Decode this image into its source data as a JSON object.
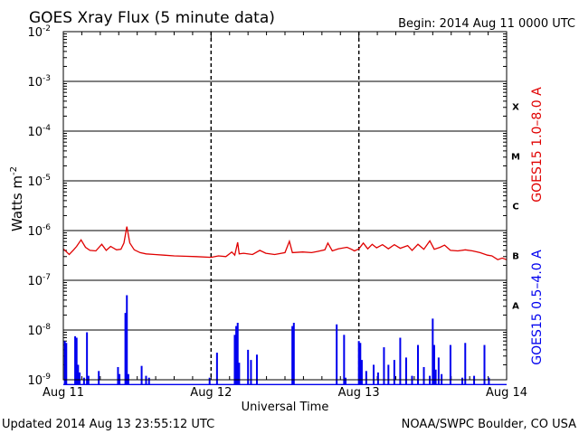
{
  "chart_data": {
    "type": "line",
    "title": "GOES Xray Flux (5 minute data)",
    "begin_label": "Begin:  2014 Aug 11 0000 UTC",
    "xlabel": "Universal Time",
    "ylabel": "Watts m",
    "ylabel_sup": "-2",
    "x_ticks": [
      "Aug 11",
      "Aug 12",
      "Aug 13",
      "Aug 14"
    ],
    "xlim_days": [
      0,
      3
    ],
    "ylim_log10": [
      -9,
      -2
    ],
    "y_ticks": [
      {
        "exp": -2,
        "base": "10",
        "sup": "-2"
      },
      {
        "exp": -3,
        "base": "10",
        "sup": "-3"
      },
      {
        "exp": -4,
        "base": "10",
        "sup": "-4"
      },
      {
        "exp": -5,
        "base": "10",
        "sup": "-5"
      },
      {
        "exp": -6,
        "base": "10",
        "sup": "-6"
      },
      {
        "exp": -7,
        "base": "10",
        "sup": "-7"
      },
      {
        "exp": -8,
        "base": "10",
        "sup": "-8"
      },
      {
        "exp": -9,
        "base": "10",
        "sup": "-9"
      }
    ],
    "flare_classes": [
      {
        "label": "X",
        "exp": -3.5
      },
      {
        "label": "M",
        "exp": -4.5
      },
      {
        "label": "C",
        "exp": -5.5
      },
      {
        "label": "B",
        "exp": -6.5
      },
      {
        "label": "A",
        "exp": -7.5
      }
    ],
    "grid": "horizontal decades, dashed day separators",
    "series": [
      {
        "name": "GOES15 1.0-8.0 A",
        "color": "#e00000",
        "points": [
          [
            0.0,
            4.3e-07
          ],
          [
            0.04,
            3.3e-07
          ],
          [
            0.07,
            4.1e-07
          ],
          [
            0.09,
            4.8e-07
          ],
          [
            0.12,
            6.5e-07
          ],
          [
            0.15,
            4.6e-07
          ],
          [
            0.18,
            4e-07
          ],
          [
            0.22,
            3.9e-07
          ],
          [
            0.26,
            5.3e-07
          ],
          [
            0.29,
            4e-07
          ],
          [
            0.32,
            4.8e-07
          ],
          [
            0.36,
            4.1e-07
          ],
          [
            0.39,
            4.2e-07
          ],
          [
            0.41,
            5.6e-07
          ],
          [
            0.43,
            1.2e-06
          ],
          [
            0.45,
            5.6e-07
          ],
          [
            0.48,
            4.1e-07
          ],
          [
            0.52,
            3.6e-07
          ],
          [
            0.56,
            3.4e-07
          ],
          [
            0.62,
            3.3e-07
          ],
          [
            0.68,
            3.2e-07
          ],
          [
            0.75,
            3.1e-07
          ],
          [
            0.82,
            3.05e-07
          ],
          [
            0.9,
            3e-07
          ],
          [
            1.0,
            2.9e-07
          ],
          [
            1.05,
            3.1e-07
          ],
          [
            1.1,
            3e-07
          ],
          [
            1.14,
            3.7e-07
          ],
          [
            1.16,
            3.2e-07
          ],
          [
            1.18,
            5.8e-07
          ],
          [
            1.19,
            3.4e-07
          ],
          [
            1.22,
            3.5e-07
          ],
          [
            1.28,
            3.3e-07
          ],
          [
            1.33,
            4e-07
          ],
          [
            1.37,
            3.5e-07
          ],
          [
            1.43,
            3.3e-07
          ],
          [
            1.5,
            3.6e-07
          ],
          [
            1.53,
            6.1e-07
          ],
          [
            1.55,
            3.6e-07
          ],
          [
            1.62,
            3.7e-07
          ],
          [
            1.68,
            3.6e-07
          ],
          [
            1.72,
            3.8e-07
          ],
          [
            1.77,
            4.1e-07
          ],
          [
            1.79,
            5.6e-07
          ],
          [
            1.82,
            3.9e-07
          ],
          [
            1.86,
            4.3e-07
          ],
          [
            1.92,
            4.6e-07
          ],
          [
            1.95,
            4.2e-07
          ],
          [
            1.97,
            3.9e-07
          ],
          [
            2.0,
            4.3e-07
          ],
          [
            2.03,
            5.6e-07
          ],
          [
            2.06,
            4.3e-07
          ],
          [
            2.09,
            5.3e-07
          ],
          [
            2.12,
            4.5e-07
          ],
          [
            2.16,
            5.2e-07
          ],
          [
            2.2,
            4.3e-07
          ],
          [
            2.24,
            5.2e-07
          ],
          [
            2.28,
            4.4e-07
          ],
          [
            2.33,
            5e-07
          ],
          [
            2.36,
            4e-07
          ],
          [
            2.4,
            5.3e-07
          ],
          [
            2.44,
            4.2e-07
          ],
          [
            2.48,
            6.2e-07
          ],
          [
            2.51,
            4.2e-07
          ],
          [
            2.55,
            4.6e-07
          ],
          [
            2.58,
            5.1e-07
          ],
          [
            2.62,
            4e-07
          ],
          [
            2.67,
            3.9e-07
          ],
          [
            2.72,
            4.1e-07
          ],
          [
            2.77,
            3.9e-07
          ],
          [
            2.82,
            3.6e-07
          ],
          [
            2.87,
            3.2e-07
          ],
          [
            2.9,
            3.1e-07
          ],
          [
            2.94,
            2.6e-07
          ],
          [
            2.97,
            2.8e-07
          ],
          [
            3.0,
            2.6e-07
          ]
        ]
      },
      {
        "name": "GOES15 0.5-4.0 A",
        "color": "#0000ee",
        "baseline": 8e-10,
        "spikes": [
          [
            0.01,
            6e-09
          ],
          [
            0.02,
            5.5e-09
          ],
          [
            0.08,
            7.5e-09
          ],
          [
            0.09,
            7e-09
          ],
          [
            0.1,
            2e-09
          ],
          [
            0.11,
            1.4e-09
          ],
          [
            0.14,
            1.1e-09
          ],
          [
            0.16,
            9e-09
          ],
          [
            0.17,
            1.2e-09
          ],
          [
            0.24,
            1.5e-09
          ],
          [
            0.37,
            1.8e-09
          ],
          [
            0.38,
            1.3e-09
          ],
          [
            0.42,
            2.2e-08
          ],
          [
            0.43,
            5e-08
          ],
          [
            0.44,
            1.3e-09
          ],
          [
            0.53,
            1.9e-09
          ],
          [
            0.56,
            1.2e-09
          ],
          [
            0.58,
            1.1e-09
          ],
          [
            0.99,
            1.1e-09
          ],
          [
            1.04,
            3.5e-09
          ],
          [
            1.16,
            8e-09
          ],
          [
            1.17,
            1.2e-08
          ],
          [
            1.18,
            1.4e-08
          ],
          [
            1.19,
            2.2e-09
          ],
          [
            1.25,
            4e-09
          ],
          [
            1.27,
            2.5e-09
          ],
          [
            1.31,
            3.2e-09
          ],
          [
            1.55,
            1.2e-08
          ],
          [
            1.56,
            1.4e-08
          ],
          [
            1.85,
            1.3e-08
          ],
          [
            1.9,
            8e-09
          ],
          [
            1.91,
            1.1e-09
          ],
          [
            2.0,
            6e-09
          ],
          [
            2.01,
            5.5e-09
          ],
          [
            2.02,
            2.5e-09
          ],
          [
            2.05,
            1.5e-09
          ],
          [
            2.1,
            2e-09
          ],
          [
            2.13,
            1.4e-09
          ],
          [
            2.17,
            4.5e-09
          ],
          [
            2.2,
            2e-09
          ],
          [
            2.24,
            2.5e-09
          ],
          [
            2.28,
            7e-09
          ],
          [
            2.32,
            2.8e-09
          ],
          [
            2.36,
            1.2e-09
          ],
          [
            2.4,
            5e-09
          ],
          [
            2.44,
            1.8e-09
          ],
          [
            2.48,
            1.2e-09
          ],
          [
            2.5,
            1.7e-08
          ],
          [
            2.51,
            5e-09
          ],
          [
            2.52,
            1.6e-09
          ],
          [
            2.54,
            2.8e-09
          ],
          [
            2.56,
            1.3e-09
          ],
          [
            2.62,
            5e-09
          ],
          [
            2.7,
            1.1e-09
          ],
          [
            2.72,
            5.5e-09
          ],
          [
            2.78,
            1.2e-09
          ],
          [
            2.85,
            5e-09
          ],
          [
            2.88,
            1.1e-09
          ]
        ]
      }
    ],
    "right_labels": [
      {
        "text": "GOES15 1.0–8.0 A",
        "color": "#e00000"
      },
      {
        "text": "GOES15 0.5–4.0 A",
        "color": "#0000ee"
      }
    ]
  },
  "footer": {
    "updated": "Updated 2014 Aug 13 23:55:12 UTC",
    "source": "NOAA/SWPC Boulder, CO USA"
  }
}
